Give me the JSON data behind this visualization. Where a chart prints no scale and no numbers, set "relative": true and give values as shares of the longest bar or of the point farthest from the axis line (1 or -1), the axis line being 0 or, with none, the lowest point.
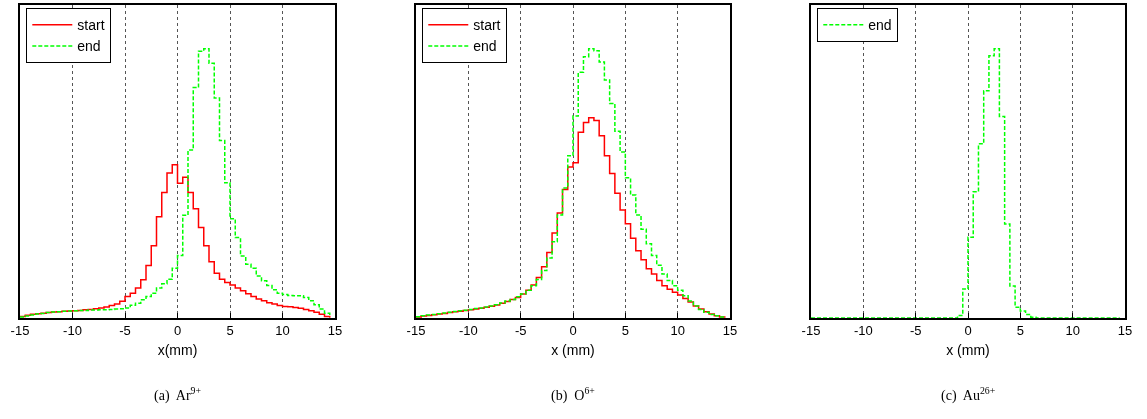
{
  "chart_data": [
    {
      "type": "step",
      "relative": true,
      "xlabel": "x(mm)",
      "annotations": [
        "(a)  Ar$^{9+}$"
      ],
      "xlim": [
        -15,
        15
      ],
      "xticks": [
        -15,
        -10,
        -5,
        0,
        5,
        10,
        15
      ],
      "grid": "x",
      "legend": "top left",
      "tick_labels": "x",
      "x": [
        -15,
        -14.5,
        -14,
        -13.5,
        -13,
        -12.5,
        -12,
        -11.5,
        -11,
        -10.5,
        -10,
        -9.5,
        -9,
        -8.5,
        -8,
        -7.5,
        -7,
        -6.5,
        -6,
        -5.5,
        -5,
        -4.5,
        -4,
        -3.5,
        -3,
        -2.5,
        -2,
        -1.5,
        -1,
        -0.5,
        0,
        0.5,
        1,
        1.5,
        2,
        2.5,
        3,
        3.5,
        4,
        4.5,
        5,
        5.5,
        6,
        6.5,
        7,
        7.5,
        8,
        8.5,
        9,
        9.5,
        10,
        10.5,
        11,
        11.5,
        12,
        12.5,
        13,
        13.5,
        14,
        14.5
      ],
      "series": [
        {
          "name": "start",
          "color": "#ff0000",
          "line_style": "solid",
          "values": [
            0.006,
            0.01,
            0.014,
            0.016,
            0.018,
            0.02,
            0.022,
            0.023,
            0.025,
            0.026,
            0.027,
            0.028,
            0.031,
            0.032,
            0.034,
            0.037,
            0.041,
            0.046,
            0.052,
            0.062,
            0.08,
            0.092,
            0.111,
            0.142,
            0.195,
            0.268,
            0.376,
            0.466,
            0.539,
            0.569,
            0.501,
            0.523,
            0.466,
            0.406,
            0.336,
            0.268,
            0.209,
            0.166,
            0.144,
            0.132,
            0.123,
            0.111,
            0.101,
            0.09,
            0.08,
            0.071,
            0.064,
            0.057,
            0.052,
            0.046,
            0.043,
            0.042,
            0.039,
            0.036,
            0.032,
            0.027,
            0.021,
            0.014,
            0.006,
            0.001
          ]
        },
        {
          "name": "end",
          "color": "#00ff00",
          "line_style": "dashed",
          "values": [
            0.004,
            0.007,
            0.011,
            0.015,
            0.017,
            0.02,
            0.022,
            0.023,
            0.025,
            0.026,
            0.027,
            0.028,
            0.028,
            0.03,
            0.03,
            0.031,
            0.031,
            0.032,
            0.033,
            0.034,
            0.037,
            0.047,
            0.055,
            0.068,
            0.08,
            0.092,
            0.111,
            0.127,
            0.144,
            0.185,
            0.232,
            0.382,
            0.624,
            0.856,
            0.991,
            1,
            0.946,
            0.817,
            0.659,
            0.502,
            0.369,
            0.299,
            0.23,
            0.2,
            0.185,
            0.156,
            0.138,
            0.121,
            0.105,
            0.092,
            0.087,
            0.084,
            0.083,
            0.083,
            0.076,
            0.064,
            0.049,
            0.033,
            0.018,
            0.006
          ]
        }
      ]
    },
    {
      "type": "step",
      "relative": true,
      "xlabel": "x (mm)",
      "annotations": [
        "(b)  O$^{6+}$"
      ],
      "xlim": [
        -15,
        15
      ],
      "xticks": [
        -15,
        -10,
        -5,
        0,
        5,
        10,
        15
      ],
      "grid": "x",
      "legend": "top left",
      "tick_labels": "x",
      "x": [
        -15,
        -14.5,
        -14,
        -13.5,
        -13,
        -12.5,
        -12,
        -11.5,
        -11,
        -10.5,
        -10,
        -9.5,
        -9,
        -8.5,
        -8,
        -7.5,
        -7,
        -6.5,
        -6,
        -5.5,
        -5,
        -4.5,
        -4,
        -3.5,
        -3,
        -2.5,
        -2,
        -1.5,
        -1,
        -0.5,
        0,
        0.5,
        1,
        1.5,
        2,
        2.5,
        3,
        3.5,
        4,
        4.5,
        5,
        5.5,
        6,
        6.5,
        7,
        7.5,
        8,
        8.5,
        9,
        9.5,
        10,
        10.5,
        11,
        11.5,
        12,
        12.5,
        13,
        13.5,
        14,
        14.5
      ],
      "series": [
        {
          "name": "start",
          "color": "#ff0000",
          "line_style": "solid",
          "values": [
            0.004,
            0.007,
            0.009,
            0.012,
            0.015,
            0.017,
            0.02,
            0.023,
            0.025,
            0.028,
            0.031,
            0.033,
            0.036,
            0.04,
            0.044,
            0.048,
            0.055,
            0.061,
            0.069,
            0.076,
            0.089,
            0.103,
            0.123,
            0.15,
            0.19,
            0.243,
            0.316,
            0.39,
            0.477,
            0.561,
            0.577,
            0.69,
            0.726,
            0.744,
            0.734,
            0.677,
            0.603,
            0.537,
            0.463,
            0.401,
            0.35,
            0.296,
            0.25,
            0.216,
            0.183,
            0.163,
            0.139,
            0.12,
            0.107,
            0.096,
            0.085,
            0.072,
            0.059,
            0.045,
            0.033,
            0.023,
            0.015,
            0.008,
            0.004,
            0.001
          ]
        },
        {
          "name": "end",
          "color": "#00ff00",
          "line_style": "dashed",
          "values": [
            0.005,
            0.008,
            0.011,
            0.013,
            0.016,
            0.019,
            0.021,
            0.024,
            0.027,
            0.029,
            0.032,
            0.035,
            0.037,
            0.041,
            0.045,
            0.049,
            0.056,
            0.063,
            0.069,
            0.079,
            0.089,
            0.103,
            0.12,
            0.143,
            0.176,
            0.223,
            0.283,
            0.383,
            0.483,
            0.603,
            0.75,
            0.913,
            0.971,
            1,
            0.993,
            0.951,
            0.884,
            0.797,
            0.694,
            0.617,
            0.521,
            0.457,
            0.383,
            0.33,
            0.276,
            0.232,
            0.196,
            0.163,
            0.139,
            0.12,
            0.103,
            0.083,
            0.063,
            0.045,
            0.032,
            0.021,
            0.013,
            0.008,
            0.004,
            0.001
          ]
        }
      ]
    },
    {
      "type": "step",
      "relative": true,
      "xlabel": "x (mm)",
      "annotations": [
        "(c)  Au$^{26+}$"
      ],
      "xlim": [
        -15,
        15
      ],
      "xticks": [
        -15,
        -10,
        -5,
        0,
        5,
        10,
        15
      ],
      "grid": "x",
      "legend": "top left",
      "tick_labels": "x",
      "x": [
        -15,
        -14.5,
        -14,
        -13.5,
        -13,
        -12.5,
        -12,
        -11.5,
        -11,
        -10.5,
        -10,
        -9.5,
        -9,
        -8.5,
        -8,
        -7.5,
        -7,
        -6.5,
        -6,
        -5.5,
        -5,
        -4.5,
        -4,
        -3.5,
        -3,
        -2.5,
        -2,
        -1.5,
        -1,
        -0.5,
        0,
        0.5,
        1,
        1.5,
        2,
        2.5,
        3,
        3.5,
        4,
        4.5,
        5,
        5.5,
        6,
        6.5,
        7,
        7.5,
        8,
        8.5,
        9,
        9.5,
        10,
        10.5,
        11,
        11.5,
        12,
        12.5,
        13,
        13.5,
        14,
        14.5
      ],
      "series": [
        {
          "name": "end",
          "color": "#00ff00",
          "line_style": "dashed",
          "values": [
            0,
            0,
            0,
            0,
            0,
            0,
            0,
            0,
            0,
            0,
            0,
            0,
            0,
            0,
            0,
            0,
            0,
            0,
            0,
            0,
            0,
            0,
            0,
            0,
            0,
            0,
            0,
            0,
            0.009,
            0.108,
            0.3,
            0.469,
            0.647,
            0.844,
            0.974,
            1,
            0.749,
            0.349,
            0.119,
            0.04,
            0.026,
            0.013,
            0.003,
            0,
            0,
            0,
            0,
            0,
            0,
            0,
            0,
            0,
            0,
            0,
            0,
            0,
            0,
            0,
            0,
            0
          ]
        }
      ]
    }
  ]
}
